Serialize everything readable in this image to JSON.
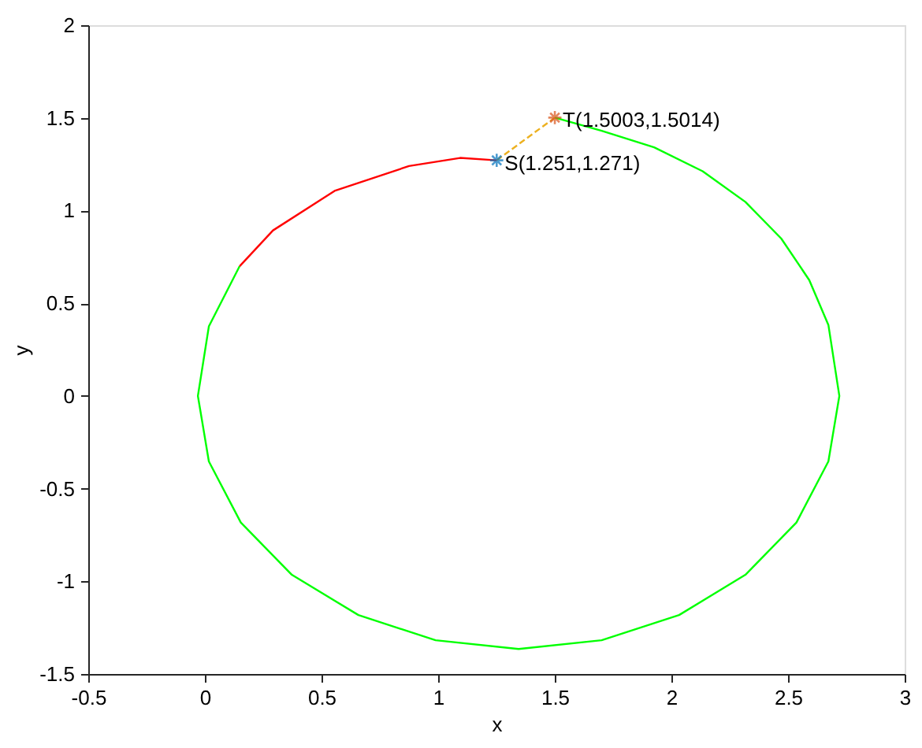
{
  "chart_data": {
    "type": "line",
    "xlabel": "x",
    "ylabel": "y",
    "xlim": [
      -0.5,
      3
    ],
    "ylim": [
      -1.5,
      2
    ],
    "xticks": [
      -0.5,
      0,
      0.5,
      1,
      1.5,
      2,
      2.5,
      3
    ],
    "yticks": [
      -1.5,
      -1,
      -0.5,
      0,
      0.5,
      1,
      1.5,
      2
    ],
    "grid": false,
    "series": [
      {
        "color": "#00ff00",
        "line_style": "solid",
        "marker": "none",
        "x": [
          1.5003,
          1.701,
          1.926,
          2.134,
          2.317,
          2.471,
          2.591,
          2.673,
          2.72,
          2.673,
          2.536,
          2.317,
          2.033,
          1.701,
          1.345,
          0.989,
          0.658,
          0.373,
          0.154,
          0.017,
          -0.03,
          0.017,
          0.149
        ],
        "values": [
          1.5014,
          1.43,
          1.341,
          1.212,
          1.047,
          0.849,
          0.625,
          0.383,
          0,
          -0.353,
          -0.683,
          -0.965,
          -1.182,
          -1.318,
          -1.365,
          -1.318,
          -1.182,
          -0.965,
          -0.683,
          -0.353,
          0,
          0.375,
          0.7
        ]
      },
      {
        "color": "#ff0000",
        "line_style": "solid",
        "marker": "none",
        "x": [
          0.149,
          0.292,
          0.556,
          0.875,
          1.094,
          1.251
        ],
        "values": [
          0.7,
          0.893,
          1.106,
          1.24,
          1.284,
          1.271
        ]
      },
      {
        "color": "#edb120",
        "line_style": "dashed",
        "marker": "none",
        "x": [
          1.251,
          1.5003
        ],
        "values": [
          1.271,
          1.5014
        ]
      },
      {
        "type": "scatter",
        "color": "#0072bd",
        "marker": "cross",
        "x": [
          1.251
        ],
        "values": [
          1.271
        ]
      },
      {
        "type": "scatter",
        "color": "#d95319",
        "marker": "cross",
        "x": [
          1.5003
        ],
        "values": [
          1.5014
        ]
      }
    ],
    "annotations": [
      {
        "text": "S(1.251,1.271)",
        "x": 1.251,
        "y": 1.271
      },
      {
        "text": "T(1.5003,1.5014)",
        "x": 1.5003,
        "y": 1.5014
      }
    ]
  }
}
